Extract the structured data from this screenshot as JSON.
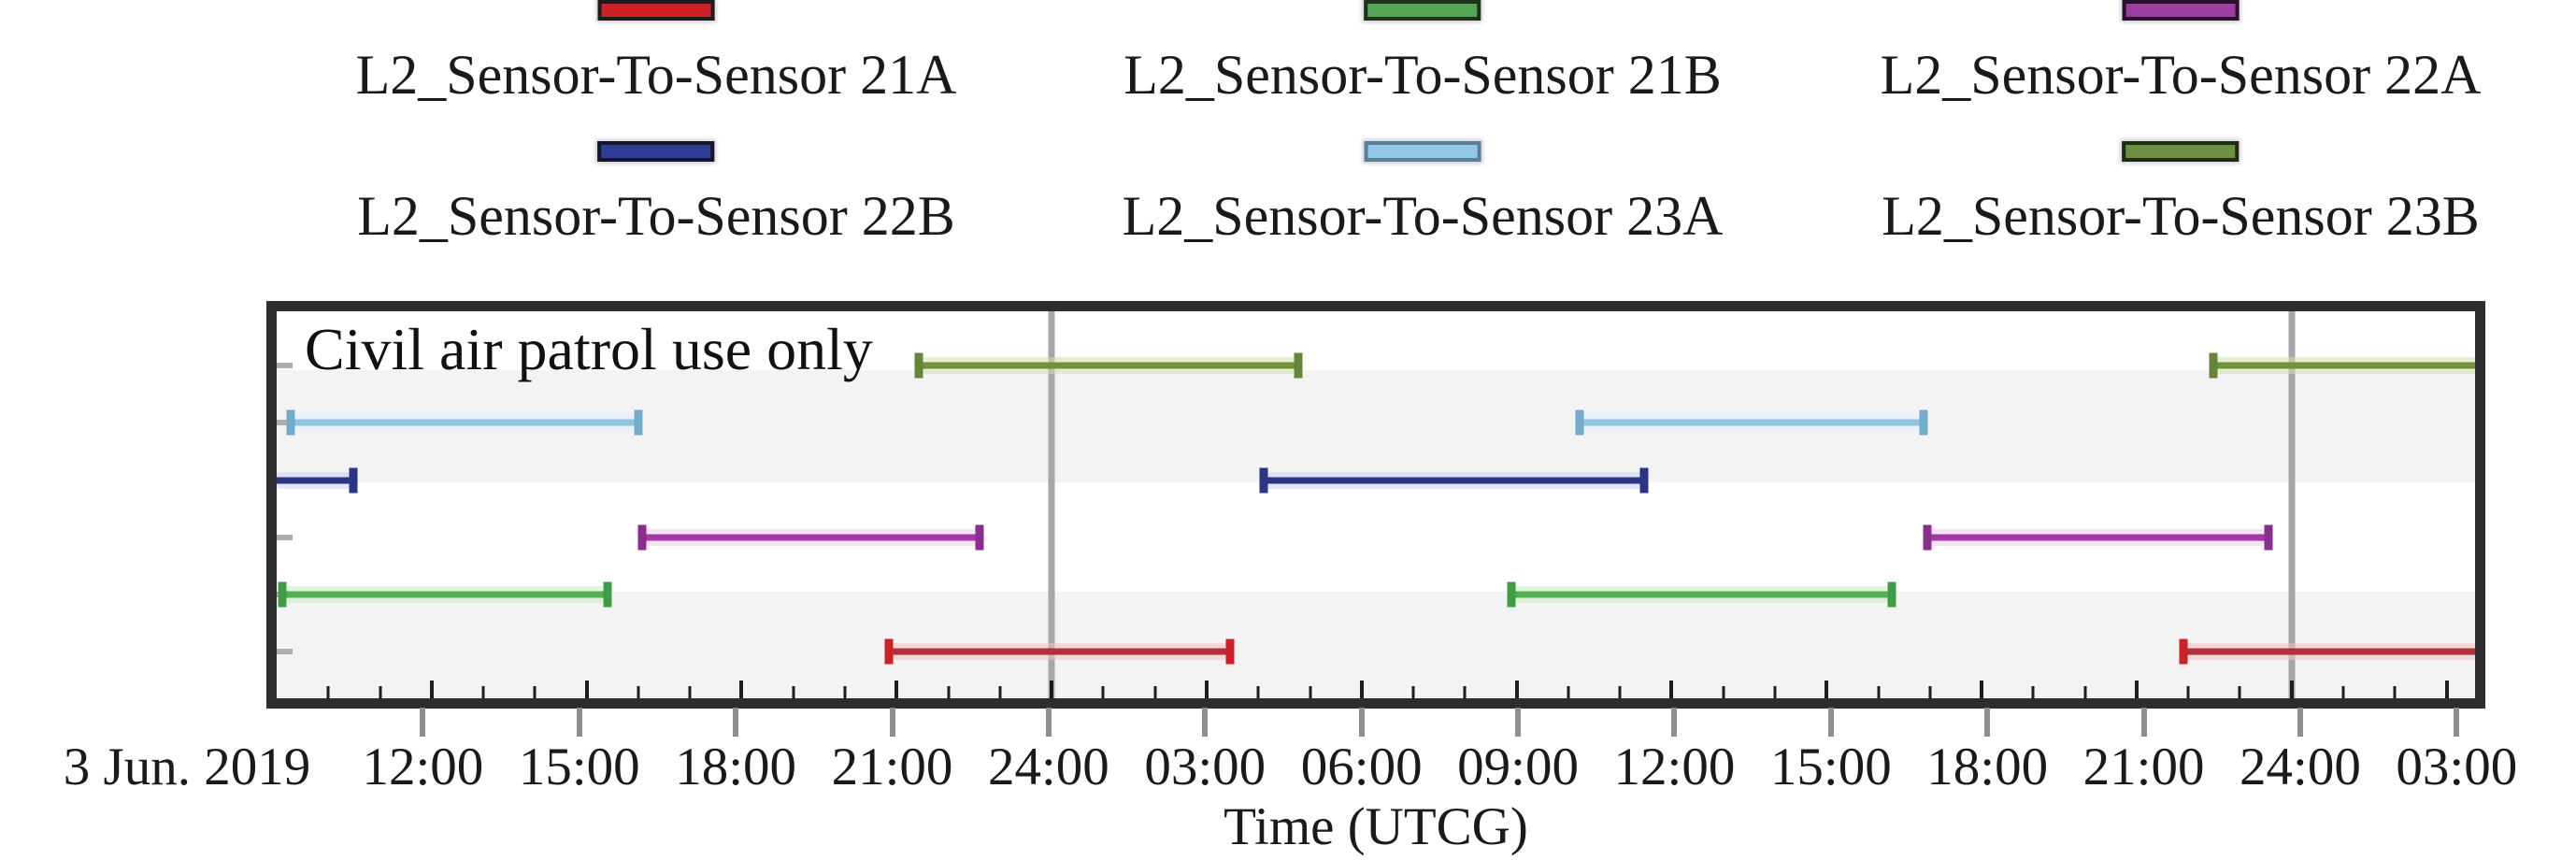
{
  "legend": {
    "items": [
      {
        "label": "L2_Sensor-To-Sensor 21A",
        "fill": "#cf2127",
        "border": "#1c1c1c"
      },
      {
        "label": "L2_Sensor-To-Sensor 21B",
        "fill": "#56a556",
        "border": "#1d331d"
      },
      {
        "label": "L2_Sensor-To-Sensor 22A",
        "fill": "#9c3e9f",
        "border": "#2a102c"
      },
      {
        "label": "L2_Sensor-To-Sensor 22B",
        "fill": "#2e3d96",
        "border": "#15152e"
      },
      {
        "label": "L2_Sensor-To-Sensor 23A",
        "fill": "#92c8e6",
        "border": "#5b7e9b"
      },
      {
        "label": "L2_Sensor-To-Sensor 23B",
        "fill": "#6d9040",
        "border": "#1f2b12"
      }
    ]
  },
  "plot": {
    "annotation": "Civil air patrol use only",
    "axis_title": "Time (UTCG)",
    "date_label": "3 Jun. 2019"
  },
  "chart_data": {
    "type": "gantt-timeline",
    "title": "",
    "xlabel": "Time (UTCG)",
    "x_axis": {
      "start_label": "3 Jun. 2019",
      "start_h": 9.0,
      "end_h": 51.55,
      "hours_per_minor_tick": 1,
      "day_lines_h": [
        24,
        48
      ],
      "day_line_color": "#a7a7a9",
      "tick_labels": [
        {
          "t": 12,
          "label": "12:00"
        },
        {
          "t": 15,
          "label": "15:00"
        },
        {
          "t": 18,
          "label": "18:00"
        },
        {
          "t": 21,
          "label": "21:00"
        },
        {
          "t": 24,
          "label": "24:00"
        },
        {
          "t": 27,
          "label": "03:00"
        },
        {
          "t": 30,
          "label": "06:00"
        },
        {
          "t": 33,
          "label": "09:00"
        },
        {
          "t": 36,
          "label": "12:00"
        },
        {
          "t": 39,
          "label": "15:00"
        },
        {
          "t": 42,
          "label": "18:00"
        },
        {
          "t": 45,
          "label": "21:00"
        },
        {
          "t": 48,
          "label": "24:00"
        },
        {
          "t": 51,
          "label": "03:00"
        }
      ]
    },
    "note": "hours are measured from 3 Jun 2019 00:00 UTCG; rows listed top-to-bottom",
    "rows": [
      {
        "id": "L2_Sensor-To-Sensor 23B",
        "line": "#71913f",
        "cap": "#66843a",
        "halo": "#cfe2a6",
        "intervals": [
          {
            "start_h": 21.42,
            "end_h": 28.77,
            "start": "3 Jun 21:25",
            "end": "4 Jun 04:45",
            "start_cap": true,
            "end_cap": true
          },
          {
            "start_h": 46.48,
            "end_h": 51.6,
            "start": "4 Jun 22:30",
            "end": "clipped at plot end",
            "start_cap": true,
            "end_cap": false
          }
        ]
      },
      {
        "id": "L2_Sensor-To-Sensor 23A",
        "line": "#90c4e1",
        "cap": "#73abcd",
        "halo": "#dcedf8",
        "intervals": [
          {
            "start_h": 9.28,
            "end_h": 16.0,
            "start": "3 Jun 09:15",
            "end": "3 Jun 16:00",
            "start_cap": true,
            "end_cap": true
          },
          {
            "start_h": 34.22,
            "end_h": 40.87,
            "start": "4 Jun 10:15",
            "end": "4 Jun 16:50",
            "start_cap": true,
            "end_cap": true
          }
        ]
      },
      {
        "id": "L2_Sensor-To-Sensor 22B",
        "line": "#2b3585",
        "cap": "#2b3585",
        "halo": "#ccd1f1",
        "intervals": [
          {
            "start_h": 9.0,
            "end_h": 10.48,
            "start": "3 Jun 09:00",
            "end": "3 Jun 10:30",
            "start_cap": false,
            "end_cap": true
          },
          {
            "start_h": 28.1,
            "end_h": 35.47,
            "start": "4 Jun 04:05",
            "end": "4 Jun 11:30",
            "start_cap": true,
            "end_cap": true
          }
        ]
      },
      {
        "id": "L2_Sensor-To-Sensor 22A",
        "line": "#a23aa5",
        "cap": "#8a2d8e",
        "halo": "#eccaed",
        "intervals": [
          {
            "start_h": 16.07,
            "end_h": 22.6,
            "start": "3 Jun 16:05",
            "end": "3 Jun 22:35",
            "start_cap": true,
            "end_cap": true
          },
          {
            "start_h": 40.95,
            "end_h": 47.55,
            "start": "4 Jun 17:00",
            "end": "4 Jun 23:30",
            "start_cap": true,
            "end_cap": true
          }
        ]
      },
      {
        "id": "L2_Sensor-To-Sensor 21B",
        "line": "#54b054",
        "cap": "#3f9d45",
        "halo": "#c6e9bd",
        "intervals": [
          {
            "start_h": 9.1,
            "end_h": 15.41,
            "start": "3 Jun 09:05",
            "end": "3 Jun 15:25",
            "start_cap": true,
            "end_cap": true
          },
          {
            "start_h": 32.9,
            "end_h": 40.27,
            "start": "4 Jun 08:55",
            "end": "4 Jun 16:15",
            "start_cap": true,
            "end_cap": true
          }
        ]
      },
      {
        "id": "L2_Sensor-To-Sensor 21A",
        "line": "#ae3237",
        "cap": "#cb2128",
        "halo": "#f2bfc2",
        "intervals": [
          {
            "start_h": 20.85,
            "end_h": 27.45,
            "start": "3 Jun 20:50",
            "end": "4 Jun 03:25",
            "start_cap": true,
            "end_cap": true
          },
          {
            "start_h": 45.9,
            "end_h": 51.6,
            "start": "4 Jun 21:55",
            "end": "clipped at plot end",
            "start_cap": true,
            "end_cap": false
          }
        ]
      }
    ],
    "layout_hints": {
      "row_top_pct": 14.0,
      "row_step_pct": 14.8,
      "bands": "alternating gray stripes",
      "legend_position": "top, 3 columns x 2 rows"
    }
  }
}
